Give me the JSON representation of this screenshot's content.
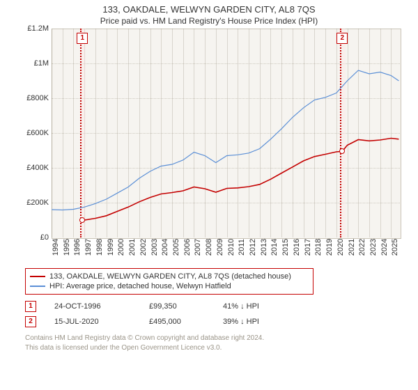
{
  "title": "133, OAKDALE, WELWYN GARDEN CITY, AL8 7QS",
  "subtitle": "Price paid vs. HM Land Registry's House Price Index (HPI)",
  "chart": {
    "type": "line",
    "background_color": "#f6f4f0",
    "border_color": "#c9c3b6",
    "grid_color": "rgba(130,120,100,0.35)",
    "x_years": [
      1994,
      1995,
      1996,
      1997,
      1998,
      1999,
      2000,
      2001,
      2002,
      2003,
      2004,
      2005,
      2006,
      2007,
      2008,
      2009,
      2010,
      2011,
      2012,
      2013,
      2014,
      2015,
      2016,
      2017,
      2018,
      2019,
      2020,
      2021,
      2022,
      2023,
      2024,
      2025
    ],
    "xlim": [
      1994,
      2025.8
    ],
    "ylim": [
      0,
      1200000
    ],
    "ytick_step": 200000,
    "yticks": [
      "£0",
      "£200K",
      "£400K",
      "£600K",
      "£800K",
      "£1M",
      "£1.2M"
    ],
    "series": [
      {
        "name": "133, OAKDALE, WELWYN GARDEN CITY, AL8 7QS (detached house)",
        "color": "#c40000",
        "line_width": 1.6,
        "points": [
          [
            1996.82,
            99350
          ],
          [
            1997,
            100000
          ],
          [
            1998,
            110000
          ],
          [
            1999,
            125000
          ],
          [
            2000,
            150000
          ],
          [
            2001,
            175000
          ],
          [
            2002,
            205000
          ],
          [
            2003,
            230000
          ],
          [
            2004,
            250000
          ],
          [
            2005,
            258000
          ],
          [
            2006,
            268000
          ],
          [
            2007,
            290000
          ],
          [
            2008,
            280000
          ],
          [
            2009,
            260000
          ],
          [
            2010,
            282000
          ],
          [
            2011,
            285000
          ],
          [
            2012,
            292000
          ],
          [
            2013,
            305000
          ],
          [
            2014,
            335000
          ],
          [
            2015,
            370000
          ],
          [
            2016,
            405000
          ],
          [
            2017,
            440000
          ],
          [
            2018,
            465000
          ],
          [
            2019,
            478000
          ],
          [
            2020,
            492000
          ],
          [
            2020.54,
            495000
          ],
          [
            2021,
            530000
          ],
          [
            2022,
            562000
          ],
          [
            2023,
            555000
          ],
          [
            2024,
            560000
          ],
          [
            2025,
            570000
          ],
          [
            2025.7,
            565000
          ]
        ]
      },
      {
        "name": "HPI: Average price, detached house, Welwyn Hatfield",
        "color": "#5b8fd6",
        "line_width": 1.2,
        "points": [
          [
            1994,
            160000
          ],
          [
            1995,
            158000
          ],
          [
            1996,
            162000
          ],
          [
            1997,
            175000
          ],
          [
            1998,
            195000
          ],
          [
            1999,
            220000
          ],
          [
            2000,
            255000
          ],
          [
            2001,
            290000
          ],
          [
            2002,
            340000
          ],
          [
            2003,
            380000
          ],
          [
            2004,
            410000
          ],
          [
            2005,
            420000
          ],
          [
            2006,
            445000
          ],
          [
            2007,
            490000
          ],
          [
            2008,
            470000
          ],
          [
            2009,
            430000
          ],
          [
            2010,
            470000
          ],
          [
            2011,
            475000
          ],
          [
            2012,
            485000
          ],
          [
            2013,
            510000
          ],
          [
            2014,
            565000
          ],
          [
            2015,
            625000
          ],
          [
            2016,
            690000
          ],
          [
            2017,
            745000
          ],
          [
            2018,
            790000
          ],
          [
            2019,
            805000
          ],
          [
            2020,
            830000
          ],
          [
            2021,
            900000
          ],
          [
            2022,
            960000
          ],
          [
            2023,
            940000
          ],
          [
            2024,
            950000
          ],
          [
            2025,
            930000
          ],
          [
            2025.7,
            900000
          ]
        ]
      }
    ],
    "markers": [
      {
        "id": "1",
        "x": 1996.82,
        "y": 99350,
        "shade_width": 6
      },
      {
        "id": "2",
        "x": 2020.54,
        "y": 495000,
        "shade_width": 6
      }
    ],
    "marker_color": "#c40000"
  },
  "legend": {
    "border_color": "#c40000",
    "rows": [
      {
        "color": "#c40000",
        "label": "133, OAKDALE, WELWYN GARDEN CITY, AL8 7QS (detached house)"
      },
      {
        "color": "#5b8fd6",
        "label": "HPI: Average price, detached house, Welwyn Hatfield"
      }
    ]
  },
  "sales": [
    {
      "id": "1",
      "date": "24-OCT-1996",
      "price": "£99,350",
      "vs_hpi": "41% ↓ HPI"
    },
    {
      "id": "2",
      "date": "15-JUL-2020",
      "price": "£495,000",
      "vs_hpi": "39% ↓ HPI"
    }
  ],
  "footer": {
    "line1": "Contains HM Land Registry data © Crown copyright and database right 2024.",
    "line2": "This data is licensed under the Open Government Licence v3.0."
  }
}
